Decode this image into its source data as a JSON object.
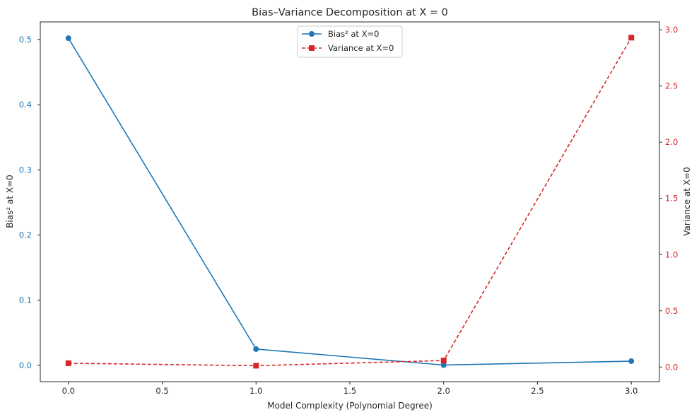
{
  "chart_data": {
    "type": "line",
    "title": "Bias–Variance Decomposition at X = 0",
    "xlabel": "Model Complexity (Polynomial Degree)",
    "xlim": [
      -0.15,
      3.15
    ],
    "xticks": [
      0.0,
      0.5,
      1.0,
      1.5,
      2.0,
      2.5,
      3.0
    ],
    "xtick_labels": [
      "0.0",
      "0.5",
      "1.0",
      "1.5",
      "2.0",
      "2.5",
      "3.0"
    ],
    "legend_position": "top-center",
    "left_axis": {
      "label": "Bias² at X=0",
      "color": "#1f77b4",
      "ylim": [
        -0.025,
        0.527
      ],
      "ticks": [
        0.0,
        0.1,
        0.2,
        0.3,
        0.4,
        0.5
      ],
      "tick_labels": [
        "0.0",
        "0.1",
        "0.2",
        "0.3",
        "0.4",
        "0.5"
      ]
    },
    "right_axis": {
      "label": "Variance at X=0",
      "color": "#d62728",
      "ylim": [
        -0.13,
        3.07
      ],
      "ticks": [
        0.0,
        0.5,
        1.0,
        1.5,
        2.0,
        2.5,
        3.0
      ],
      "tick_labels": [
        "0.0",
        "0.5",
        "1.0",
        "1.5",
        "2.0",
        "2.5",
        "3.0"
      ]
    },
    "series": [
      {
        "name": "Bias² at X=0",
        "axis": "left",
        "color": "#1f77b4",
        "marker": "circle",
        "linestyle": "solid",
        "x": [
          0,
          1,
          2,
          3
        ],
        "values": [
          0.502,
          0.025,
          0.0005,
          0.0065
        ]
      },
      {
        "name": "Variance at X=0",
        "axis": "right",
        "color": "#d62728",
        "marker": "square",
        "linestyle": "dashed",
        "x": [
          0,
          1,
          2,
          3
        ],
        "values": [
          0.034,
          0.012,
          0.058,
          2.93
        ]
      }
    ]
  }
}
